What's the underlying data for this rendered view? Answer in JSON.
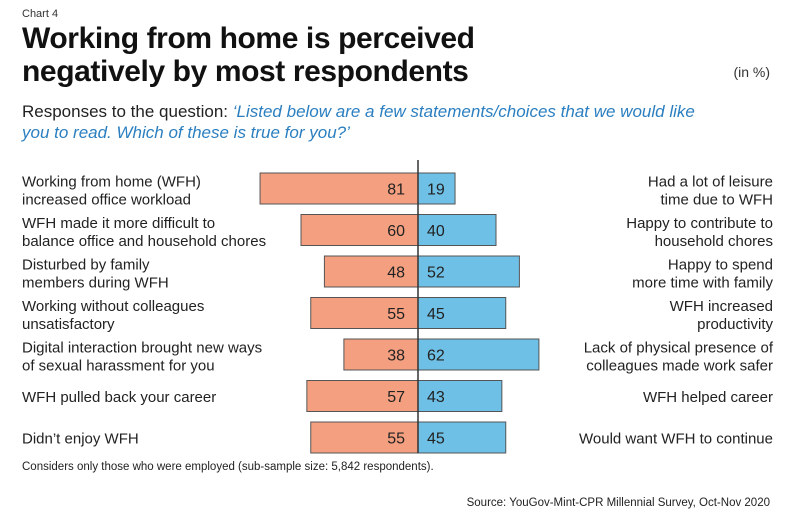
{
  "header": {
    "chart_number": "Chart 4",
    "title": "Working from home is perceived negatively by most respondents",
    "unit": "(in %)",
    "question_prefix": "Responses to the question: ",
    "question_quote": "‘Listed below are a few statements/choices that we would like you to read. Which of these is true for you?’"
  },
  "footer": {
    "footnote": "Considers only those who were employed (sub-sample size: 5,842 respondents).",
    "source": "Source: YouGov-Mint-CPR Millennial Survey, Oct-Nov 2020"
  },
  "colors": {
    "negative": "#f4a080",
    "positive": "#6fc0e6",
    "bar_outline": "#555555",
    "axis": "#333333",
    "quote": "#2b7fc0"
  },
  "chart_data": {
    "type": "bar",
    "orientation": "diverging-horizontal",
    "unit": "%",
    "negative_labels": [
      [
        "Working from home (WFH)",
        "increased office workload"
      ],
      [
        "WFH made it more difficult to",
        "balance office and household chores"
      ],
      [
        "Disturbed by family",
        "members during WFH"
      ],
      [
        "Working without colleagues",
        "unsatisfactory"
      ],
      [
        "Digital interaction brought new ways",
        "of sexual harassment for you"
      ],
      [
        "WFH pulled back your career"
      ],
      [
        "Didn’t enjoy WFH"
      ]
    ],
    "positive_labels": [
      [
        "Had a lot of leisure",
        "time due to WFH"
      ],
      [
        "Happy to contribute to",
        "household chores"
      ],
      [
        "Happy to spend",
        "more time with family"
      ],
      [
        "WFH increased",
        "productivity"
      ],
      [
        "Lack of physical presence of",
        "colleagues made work safer"
      ],
      [
        "WFH helped career"
      ],
      [
        "Would want WFH to continue"
      ]
    ],
    "series": [
      {
        "values": [
          81,
          60,
          48,
          55,
          38,
          57,
          55
        ]
      },
      {
        "values": [
          19,
          40,
          52,
          45,
          62,
          43,
          45
        ]
      }
    ]
  }
}
